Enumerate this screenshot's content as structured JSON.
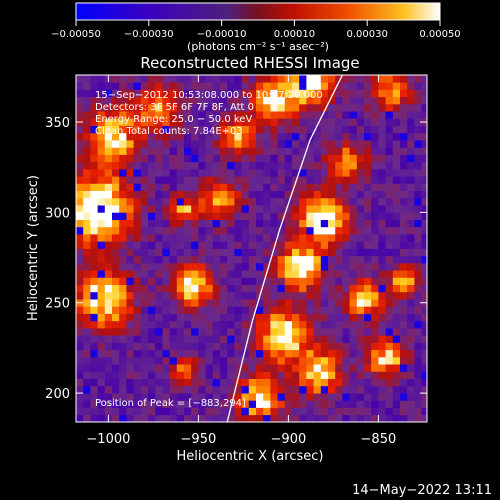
{
  "chart_data": {
    "type": "heatmap",
    "title": "Reconstructed RHESSI Image",
    "xlabel": "Heliocentric X (arcsec)",
    "ylabel": "Heliocentric Y (arcsec)",
    "xlim": [
      -1018,
      -823
    ],
    "ylim": [
      184,
      376
    ],
    "x_ticks": [
      -1000,
      -950,
      -900,
      -850
    ],
    "x_tick_labels": [
      "−1000",
      "−950",
      "−900",
      "−850"
    ],
    "y_ticks": [
      200,
      250,
      300,
      350
    ],
    "y_tick_labels": [
      "200",
      "250",
      "300",
      "350"
    ],
    "colorbar": {
      "range": [
        -0.0005,
        0.0005
      ],
      "ticks": [
        -0.0005,
        -0.0003,
        -0.0001,
        0.0001,
        0.0003,
        0.0005
      ],
      "tick_labels": [
        "−0.00050",
        "−0.00030",
        "−0.00010",
        "0.00010",
        "0.00030",
        "0.00050"
      ],
      "units_label": "(photons cm⁻² s⁻¹ asec⁻²)"
    },
    "annotations": [
      "15−Sep−2012 10:53:08.000 to 10:57:20.000",
      "Detectors: 3F 5F 6F 7F 8F, Att 0",
      "Energy Range: 25.0 − 50.0 keV",
      "Clean      Total counts: 7.84E+03"
    ],
    "peak_label": "Position of Peak = [−883,294]",
    "peak": [
      -883,
      294
    ],
    "limb_curve": [
      [
        -934,
        184
      ],
      [
        -920,
        240
      ],
      [
        -905,
        290
      ],
      [
        -888,
        340
      ],
      [
        -870,
        376
      ]
    ],
    "grid": false,
    "colormap": [
      "#0000ff",
      "#4400aa",
      "#6a2a8c",
      "#b01010",
      "#e82000",
      "#ff7a00",
      "#ffd020",
      "#ffffff"
    ]
  },
  "footer_timestamp": "14−May−2022 13:11"
}
